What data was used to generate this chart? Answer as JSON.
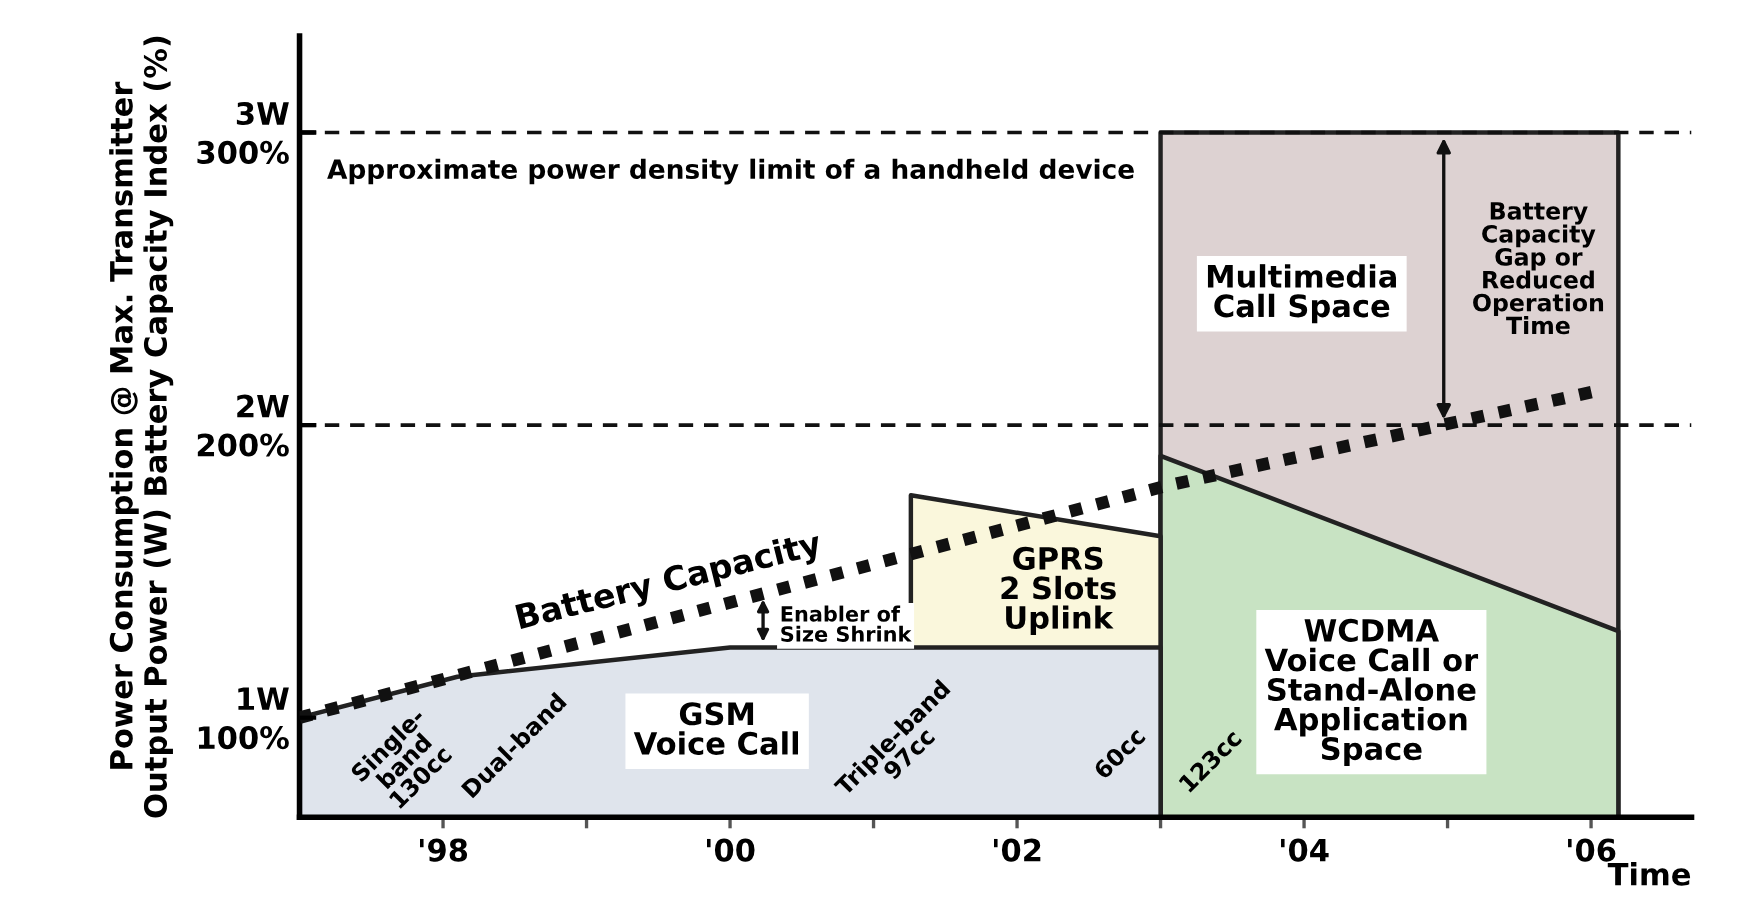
{
  "chart_data": {
    "type": "area",
    "xlabel": "Time",
    "ylabel": "Power Consumption @ Max. Transmitter\nOutput Power (W) Battery Capacity Index (%)",
    "xlim": [
      1997,
      2006.7
    ],
    "ylim": [
      66,
      333
    ],
    "xticks": [
      {
        "value": 1998,
        "label": "'98"
      },
      {
        "value": 1999,
        "label": null
      },
      {
        "value": 2000,
        "label": "'00"
      },
      {
        "value": 2001,
        "label": null
      },
      {
        "value": 2002,
        "label": "'02"
      },
      {
        "value": 2003,
        "label": null
      },
      {
        "value": 2004,
        "label": "'04"
      },
      {
        "value": 2005,
        "label": null
      },
      {
        "value": 2006,
        "label": "'06"
      }
    ],
    "yticks": [
      {
        "value": 100,
        "label": "100%"
      },
      {
        "value": 200,
        "label": "200%"
      },
      {
        "value": 300,
        "label": "300%"
      }
    ],
    "y2lim": [
      0.66,
      3.33
    ],
    "y2ticks": [
      {
        "value": 1,
        "label": "1W"
      },
      {
        "value": 2,
        "label": "2W"
      },
      {
        "value": 3,
        "label": "3W"
      }
    ],
    "grid": false,
    "legend": false,
    "series": [
      {
        "color": "#ddd2d2",
        "x": [
          2003,
          2006.19
        ],
        "values": [
          300,
          300
        ]
      },
      {
        "color": "#c8e3c3",
        "x": [
          2003,
          2006.19
        ],
        "values": [
          189.5,
          129.6
        ]
      },
      {
        "color": "#faf7dc",
        "x": [
          2001.26,
          2003
        ],
        "values": [
          176,
          162
        ]
      },
      {
        "color": "#dfe4ec",
        "x": [
          1997,
          1998.1,
          2000,
          2001.26,
          2003
        ],
        "values": [
          100,
          114,
          124,
          124,
          124
        ]
      },
      {
        "type": "line",
        "color": "#111111",
        "line_style": "dotted",
        "x": [
          1997,
          2003.02,
          2006.07
        ],
        "values": [
          100,
          179,
          212
        ]
      }
    ],
    "ref_lines": [
      {
        "axis": "y",
        "value": 300,
        "label": "Approximate power density limit of a handheld device",
        "color": "#111111",
        "line_style": "dashed"
      },
      {
        "axis": "y",
        "value": 200,
        "color": "#111111",
        "line_style": "dashed"
      }
    ],
    "annotations": [
      "Battery Capacity",
      "Enabler of\nSize Shrink",
      "GSM\nVoice Call",
      "GPRS\n2 Slots\nUplink",
      "WCDMA\nVoice Call or\nStand-Alone\nApplication\nSpace",
      "Multimedia\nCall Space",
      "Battery\nCapacity\nGap or\nReduced\nOperation\nTime",
      "Single-\nband\n130cc",
      "Dual-band",
      "Triple-band\n97cc",
      "60cc",
      "123cc"
    ]
  }
}
